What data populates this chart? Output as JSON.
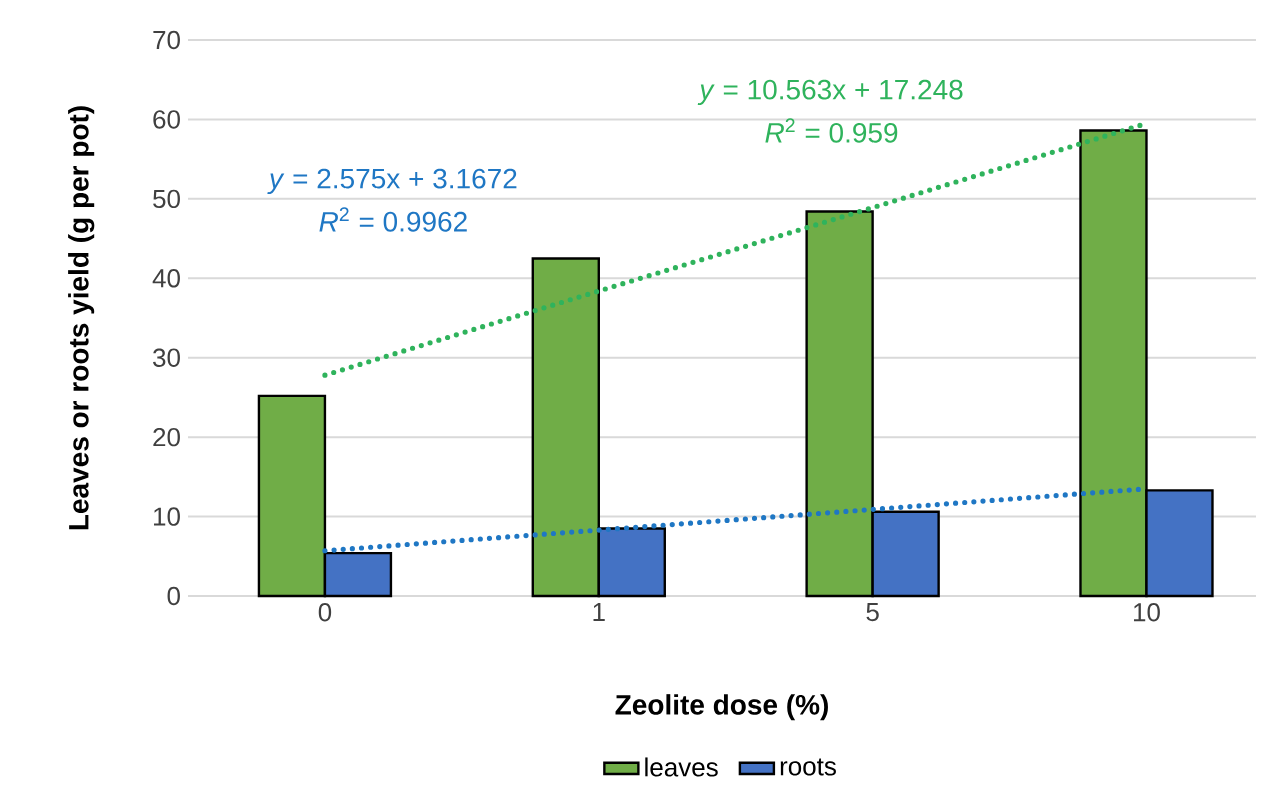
{
  "chart_data": {
    "type": "bar",
    "xlabel": "Zeolite dose (%)",
    "ylabel": "Leaves or roots yield (g per pot)",
    "categories": [
      "0",
      "1",
      "5",
      "10"
    ],
    "series": [
      {
        "name": "leaves",
        "color": "#70ad47",
        "values": [
          25.2,
          42.5,
          48.4,
          58.6
        ]
      },
      {
        "name": "roots",
        "color": "#4472c4",
        "values": [
          5.4,
          8.5,
          10.6,
          13.3
        ]
      },
      {
        "type": "line",
        "color": "#2fb35c",
        "values": [
          27.8,
          38.4,
          48.9,
          59.5
        ],
        "line_style": "dotted"
      },
      {
        "type": "line",
        "color": "#1f77c4",
        "values": [
          5.7,
          8.3,
          10.9,
          13.5
        ],
        "line_style": "dotted"
      }
    ],
    "ylim": [
      0,
      70
    ],
    "yticks": [
      0,
      10,
      20,
      30,
      40,
      50,
      60,
      70
    ],
    "grid": "y",
    "legend": "bottom",
    "marker": "none",
    "annotations": [
      "*y* = 10.563x + 17.248",
      "*R*$^{2}$ = 0.959",
      "*y* = 2.575x + 3.1672",
      "*R*$^{2}$ = 0.9962"
    ]
  }
}
